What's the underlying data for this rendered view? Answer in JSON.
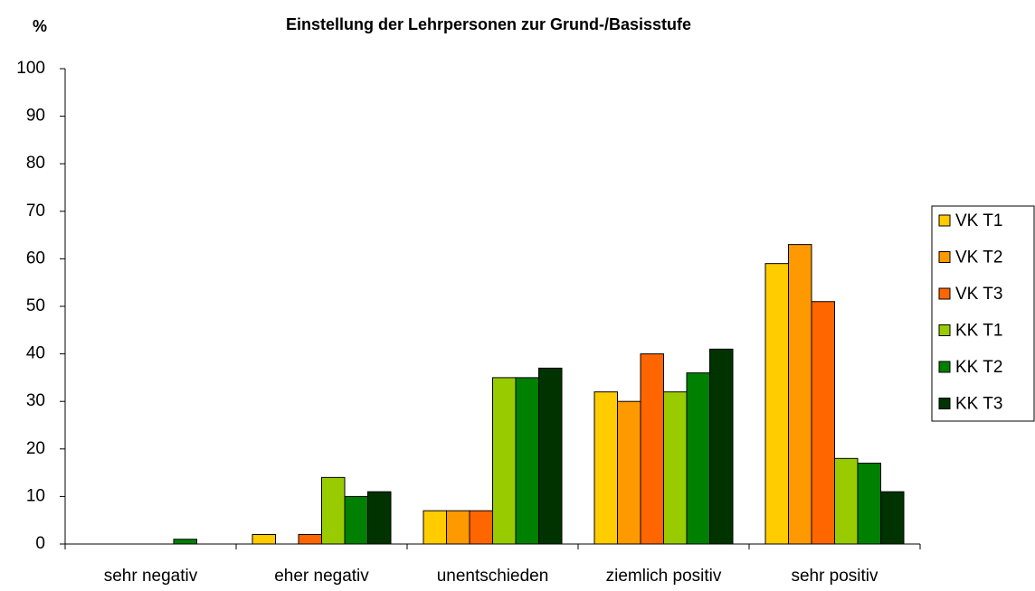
{
  "chart_data": {
    "type": "bar",
    "title": "Einstellung der Lehrpersonen zur Grund-/Basisstufe",
    "y_label": "%",
    "categories": [
      "sehr negativ",
      "eher negativ",
      "unentschieden",
      "ziemlich positiv",
      "sehr positiv"
    ],
    "series": [
      {
        "name": "VK T1",
        "color": "#ffcc00",
        "values": [
          0,
          2,
          7,
          32,
          59
        ]
      },
      {
        "name": "VK T2",
        "color": "#ff9900",
        "values": [
          0,
          0,
          7,
          30,
          63
        ]
      },
      {
        "name": "VK T3",
        "color": "#ff6600",
        "values": [
          0,
          2,
          7,
          40,
          51
        ]
      },
      {
        "name": "KK T1",
        "color": "#99cc00",
        "values": [
          0,
          14,
          35,
          32,
          18
        ]
      },
      {
        "name": "KK T2",
        "color": "#008000",
        "values": [
          1,
          10,
          35,
          36,
          17
        ]
      },
      {
        "name": "KK T3",
        "color": "#003300",
        "values": [
          0,
          11,
          37,
          41,
          11
        ]
      }
    ],
    "ylim": [
      0,
      100
    ],
    "yticks": [
      0,
      10,
      20,
      30,
      40,
      50,
      60,
      70,
      80,
      90,
      100
    ],
    "grid": false,
    "legend": "right"
  }
}
